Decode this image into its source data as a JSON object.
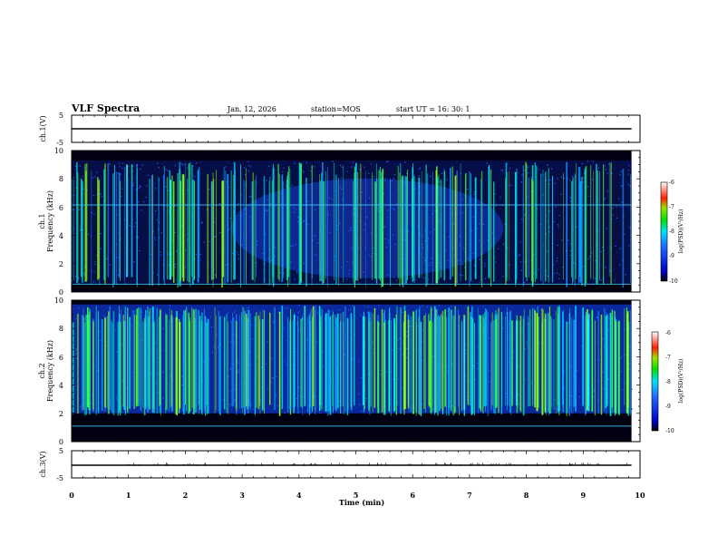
{
  "header": {
    "title": "VLF Spectra",
    "date": "Jan. 12, 2026",
    "station": "station=MOS",
    "start": "start UT =  16: 30: 1"
  },
  "chart_data": [
    {
      "type": "line",
      "panel": "ch1-voltage",
      "ylabel": "ch.1(V)",
      "ylim": [
        -5,
        5
      ],
      "y_ticks": [
        "5",
        "-5"
      ],
      "xlim": [
        0,
        10
      ],
      "series": [
        {
          "x": [
            0,
            9.85
          ],
          "y": [
            0,
            0
          ]
        }
      ]
    },
    {
      "type": "heatmap",
      "panel": "ch1-spectrogram",
      "ylabel_top": "ch.1",
      "ylabel": "Frequency (kHz)",
      "ylim": [
        0,
        10
      ],
      "y_ticks": [
        "0",
        "2",
        "4",
        "6",
        "8",
        "10"
      ],
      "xlim": [
        0,
        10
      ],
      "data_extent_min": 9.85,
      "colorbar": {
        "label": "log(PSD)(V²/Hz)",
        "ticks": [
          "-6",
          "-7",
          "-8",
          "-9",
          "-10"
        ],
        "range": [
          -10,
          -6
        ]
      },
      "lines_khz": [
        0.55,
        6.15
      ]
    },
    {
      "type": "heatmap",
      "panel": "ch2-spectrogram",
      "ylabel_top": "ch.2",
      "ylabel": "Frequency (kHz)",
      "ylim": [
        0,
        10
      ],
      "y_ticks": [
        "0",
        "2",
        "4",
        "6",
        "8",
        "10"
      ],
      "xlim": [
        0,
        10
      ],
      "data_extent_min": 9.85,
      "colorbar": {
        "label": "log(PSD)(V²/Hz)",
        "ticks": [
          "-6",
          "-7",
          "-8",
          "-9",
          "-10"
        ],
        "range": [
          -10,
          -6
        ]
      },
      "lines_khz": [
        1.1
      ]
    },
    {
      "type": "line",
      "panel": "ch3-voltage",
      "ylabel": "ch.3(V)",
      "ylim": [
        -5,
        5
      ],
      "y_ticks": [
        "5",
        "-5"
      ],
      "xlabel": "Time (min)",
      "xlim": [
        0,
        10
      ],
      "x_ticks": [
        "0",
        "1",
        "2",
        "3",
        "4",
        "5",
        "6",
        "7",
        "8",
        "9",
        "10"
      ],
      "series": [
        {
          "x": [
            0,
            9.85
          ],
          "y": [
            0,
            0
          ]
        }
      ]
    }
  ]
}
